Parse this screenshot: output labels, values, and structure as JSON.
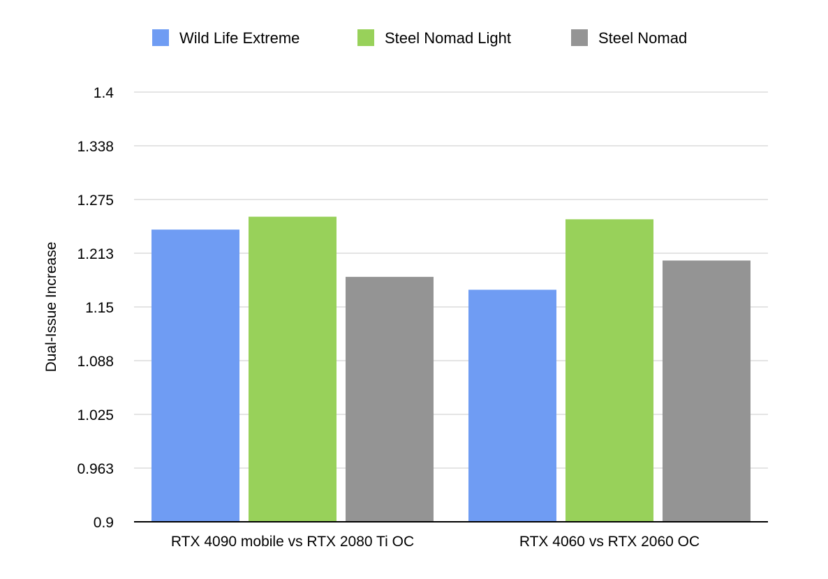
{
  "chart_data": {
    "type": "bar",
    "title": "",
    "xlabel": "",
    "ylabel": "Dual-Issue Increase",
    "ylim": [
      0.9,
      1.4
    ],
    "yticks": [
      "0.9",
      "0.963",
      "1.025",
      "1.088",
      "1.15",
      "1.213",
      "1.275",
      "1.338",
      "1.4"
    ],
    "categories": [
      "RTX 4090 mobile vs RTX 2080 Ti OC",
      "RTX 4060 vs RTX 2060 OC"
    ],
    "series": [
      {
        "name": "Wild Life Extreme",
        "color": "#6f9cf3",
        "values": [
          1.24,
          1.17
        ]
      },
      {
        "name": "Steel Nomad Light",
        "color": "#98d15a",
        "values": [
          1.255,
          1.252
        ]
      },
      {
        "name": "Steel Nomad",
        "color": "#949494",
        "values": [
          1.185,
          1.204
        ]
      }
    ],
    "grid": true,
    "legend_position": "top"
  }
}
